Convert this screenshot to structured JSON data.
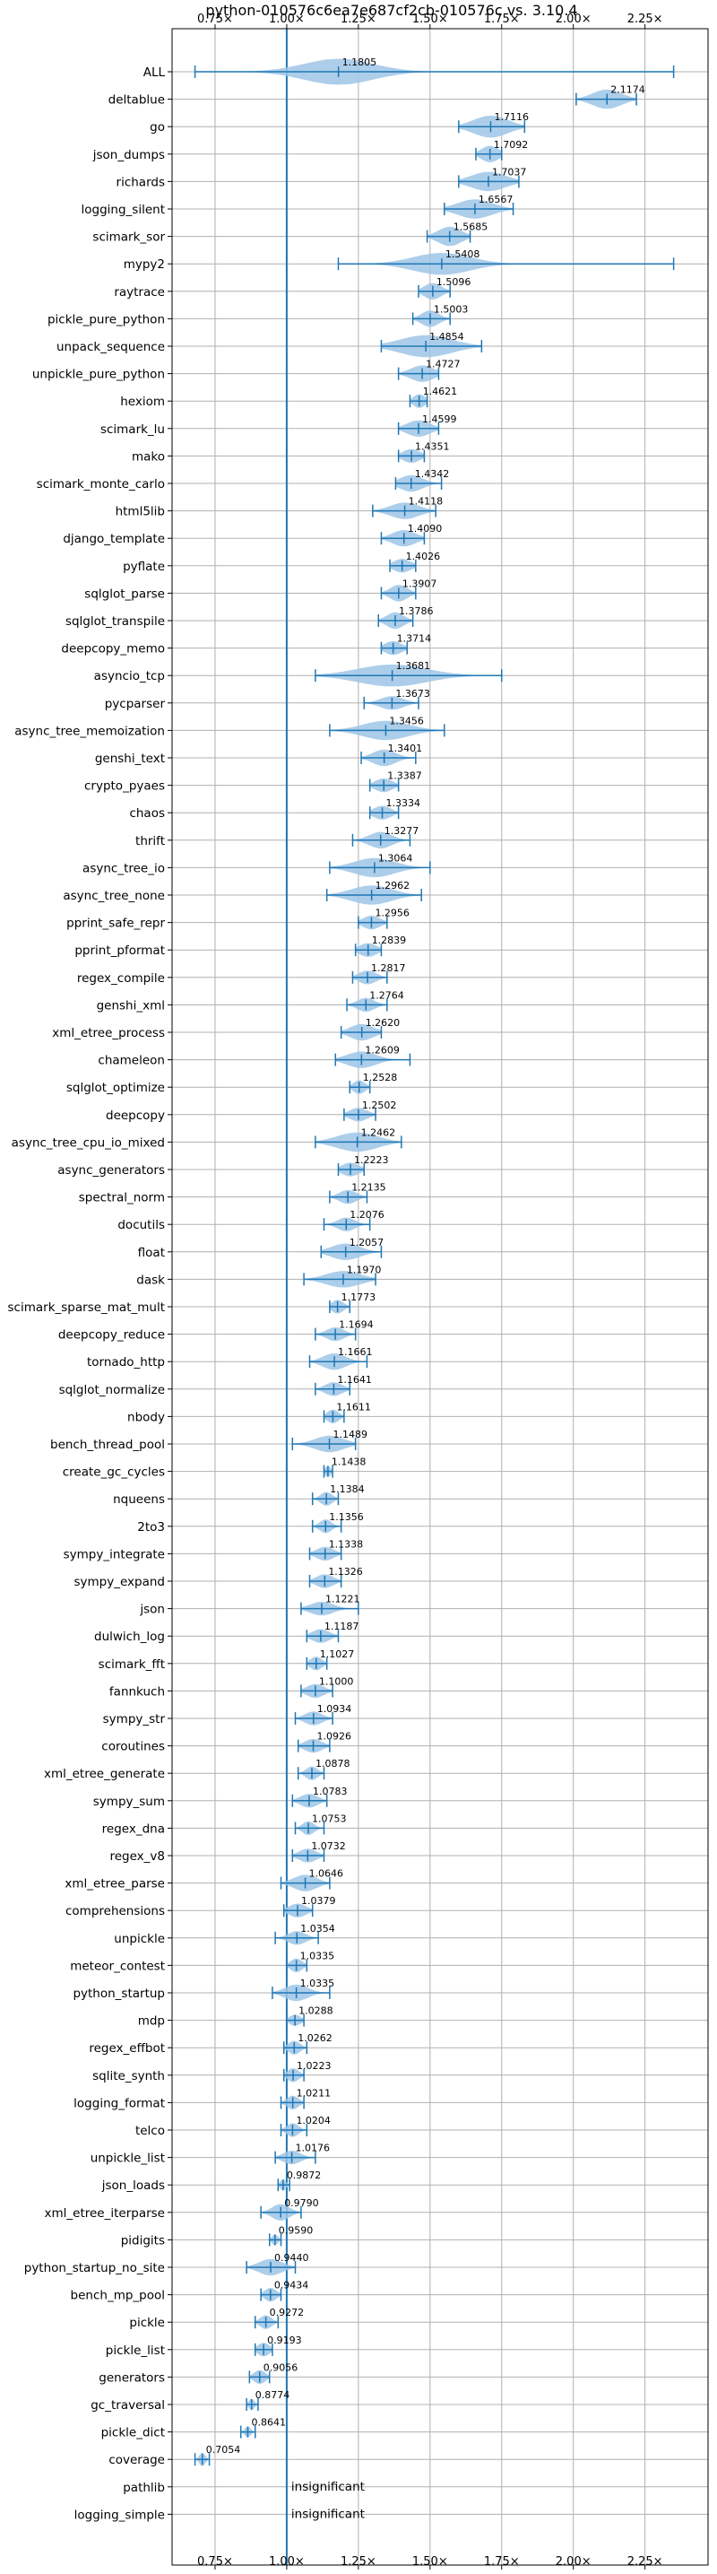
{
  "chart_data": {
    "type": "violin",
    "title": "python-010576c6ea7e687cf2cb-010576c vs. 3.10.4",
    "x_tick_labels": [
      "0.75×",
      "1.00×",
      "1.25×",
      "1.50×",
      "1.75×",
      "2.00×",
      "2.25×"
    ],
    "x_ticks": [
      0.75,
      1.0,
      1.25,
      1.5,
      1.75,
      2.0,
      2.25
    ],
    "xlim": [
      0.6,
      2.47
    ],
    "reference_line": 1.0,
    "grid": true,
    "colors": {
      "violin": "#9ec5e6",
      "line": "#1f77b4",
      "grid": "#b0b0b0"
    },
    "insignificant_text": "insignificant",
    "benchmarks": [
      {
        "name": "ALL",
        "value": 1.1805,
        "label": "1.1805",
        "min": 0.68,
        "max": 2.35,
        "w": 0.95,
        "spread": 0.12
      },
      {
        "name": "deltablue",
        "value": 2.1174,
        "label": "2.1174",
        "min": 2.01,
        "max": 2.22,
        "w": 0.7,
        "spread": 0.05
      },
      {
        "name": "go",
        "value": 1.7116,
        "label": "1.7116",
        "min": 1.6,
        "max": 1.83,
        "w": 0.8,
        "spread": 0.06
      },
      {
        "name": "json_dumps",
        "value": 1.7092,
        "label": "1.7092",
        "min": 1.66,
        "max": 1.75,
        "w": 0.6,
        "spread": 0.03
      },
      {
        "name": "richards",
        "value": 1.7037,
        "label": "1.7037",
        "min": 1.6,
        "max": 1.81,
        "w": 0.7,
        "spread": 0.06
      },
      {
        "name": "logging_silent",
        "value": 1.6567,
        "label": "1.6567",
        "min": 1.55,
        "max": 1.79,
        "w": 0.7,
        "spread": 0.06
      },
      {
        "name": "scimark_sor",
        "value": 1.5685,
        "label": "1.5685",
        "min": 1.49,
        "max": 1.64,
        "w": 0.7,
        "spread": 0.04
      },
      {
        "name": "mypy2",
        "value": 1.5408,
        "label": "1.5408",
        "min": 1.18,
        "max": 2.35,
        "w": 0.8,
        "spread": 0.1
      },
      {
        "name": "raytrace",
        "value": 1.5096,
        "label": "1.5096",
        "min": 1.46,
        "max": 1.57,
        "w": 0.6,
        "spread": 0.03
      },
      {
        "name": "pickle_pure_python",
        "value": 1.5003,
        "label": "1.5003",
        "min": 1.44,
        "max": 1.57,
        "w": 0.6,
        "spread": 0.03
      },
      {
        "name": "unpack_sequence",
        "value": 1.4854,
        "label": "1.4854",
        "min": 1.33,
        "max": 1.68,
        "w": 0.8,
        "spread": 0.09
      },
      {
        "name": "unpickle_pure_python",
        "value": 1.4727,
        "label": "1.4727",
        "min": 1.39,
        "max": 1.53,
        "w": 0.6,
        "spread": 0.04
      },
      {
        "name": "hexiom",
        "value": 1.4621,
        "label": "1.4621",
        "min": 1.43,
        "max": 1.49,
        "w": 0.5,
        "spread": 0.02
      },
      {
        "name": "scimark_lu",
        "value": 1.4599,
        "label": "1.4599",
        "min": 1.39,
        "max": 1.53,
        "w": 0.6,
        "spread": 0.04
      },
      {
        "name": "mako",
        "value": 1.4351,
        "label": "1.4351",
        "min": 1.39,
        "max": 1.48,
        "w": 0.5,
        "spread": 0.03
      },
      {
        "name": "scimark_monte_carlo",
        "value": 1.4342,
        "label": "1.4342",
        "min": 1.38,
        "max": 1.54,
        "w": 0.6,
        "spread": 0.04
      },
      {
        "name": "html5lib",
        "value": 1.4118,
        "label": "1.4118",
        "min": 1.3,
        "max": 1.52,
        "w": 0.6,
        "spread": 0.05
      },
      {
        "name": "django_template",
        "value": 1.409,
        "label": "1.4090",
        "min": 1.33,
        "max": 1.48,
        "w": 0.6,
        "spread": 0.04
      },
      {
        "name": "pyflate",
        "value": 1.4026,
        "label": "1.4026",
        "min": 1.36,
        "max": 1.45,
        "w": 0.5,
        "spread": 0.03
      },
      {
        "name": "sqlglot_parse",
        "value": 1.3907,
        "label": "1.3907",
        "min": 1.33,
        "max": 1.45,
        "w": 0.6,
        "spread": 0.03
      },
      {
        "name": "sqlglot_transpile",
        "value": 1.3786,
        "label": "1.3786",
        "min": 1.32,
        "max": 1.44,
        "w": 0.6,
        "spread": 0.03
      },
      {
        "name": "deepcopy_memo",
        "value": 1.3714,
        "label": "1.3714",
        "min": 1.33,
        "max": 1.42,
        "w": 0.5,
        "spread": 0.03
      },
      {
        "name": "asyncio_tcp",
        "value": 1.3681,
        "label": "1.3681",
        "min": 1.1,
        "max": 1.75,
        "w": 0.8,
        "spread": 0.12
      },
      {
        "name": "pycparser",
        "value": 1.3673,
        "label": "1.3673",
        "min": 1.27,
        "max": 1.46,
        "w": 0.5,
        "spread": 0.04
      },
      {
        "name": "async_tree_memoization",
        "value": 1.3456,
        "label": "1.3456",
        "min": 1.15,
        "max": 1.55,
        "w": 0.7,
        "spread": 0.08
      },
      {
        "name": "genshi_text",
        "value": 1.3401,
        "label": "1.3401",
        "min": 1.26,
        "max": 1.45,
        "w": 0.6,
        "spread": 0.04
      },
      {
        "name": "crypto_pyaes",
        "value": 1.3387,
        "label": "1.3387",
        "min": 1.29,
        "max": 1.39,
        "w": 0.5,
        "spread": 0.03
      },
      {
        "name": "chaos",
        "value": 1.3334,
        "label": "1.3334",
        "min": 1.29,
        "max": 1.39,
        "w": 0.5,
        "spread": 0.03
      },
      {
        "name": "thrift",
        "value": 1.3277,
        "label": "1.3277",
        "min": 1.23,
        "max": 1.43,
        "w": 0.6,
        "spread": 0.04
      },
      {
        "name": "async_tree_io",
        "value": 1.3064,
        "label": "1.3064",
        "min": 1.15,
        "max": 1.5,
        "w": 0.7,
        "spread": 0.07
      },
      {
        "name": "async_tree_none",
        "value": 1.2962,
        "label": "1.2962",
        "min": 1.14,
        "max": 1.47,
        "w": 0.7,
        "spread": 0.07
      },
      {
        "name": "pprint_safe_repr",
        "value": 1.2956,
        "label": "1.2956",
        "min": 1.25,
        "max": 1.35,
        "w": 0.5,
        "spread": 0.03
      },
      {
        "name": "pprint_pformat",
        "value": 1.2839,
        "label": "1.2839",
        "min": 1.24,
        "max": 1.33,
        "w": 0.5,
        "spread": 0.03
      },
      {
        "name": "regex_compile",
        "value": 1.2817,
        "label": "1.2817",
        "min": 1.23,
        "max": 1.35,
        "w": 0.5,
        "spread": 0.03
      },
      {
        "name": "genshi_xml",
        "value": 1.2764,
        "label": "1.2764",
        "min": 1.21,
        "max": 1.35,
        "w": 0.5,
        "spread": 0.03
      },
      {
        "name": "xml_etree_process",
        "value": 1.262,
        "label": "1.2620",
        "min": 1.19,
        "max": 1.33,
        "w": 0.6,
        "spread": 0.04
      },
      {
        "name": "chameleon",
        "value": 1.2609,
        "label": "1.2609",
        "min": 1.17,
        "max": 1.43,
        "w": 0.6,
        "spread": 0.05
      },
      {
        "name": "sqlglot_optimize",
        "value": 1.2528,
        "label": "1.2528",
        "min": 1.22,
        "max": 1.29,
        "w": 0.5,
        "spread": 0.02
      },
      {
        "name": "deepcopy",
        "value": 1.2502,
        "label": "1.2502",
        "min": 1.2,
        "max": 1.31,
        "w": 0.5,
        "spread": 0.03
      },
      {
        "name": "async_tree_cpu_io_mixed",
        "value": 1.2462,
        "label": "1.2462",
        "min": 1.1,
        "max": 1.4,
        "w": 0.7,
        "spread": 0.07
      },
      {
        "name": "async_generators",
        "value": 1.2223,
        "label": "1.2223",
        "min": 1.18,
        "max": 1.27,
        "w": 0.5,
        "spread": 0.03
      },
      {
        "name": "spectral_norm",
        "value": 1.2135,
        "label": "1.2135",
        "min": 1.15,
        "max": 1.28,
        "w": 0.5,
        "spread": 0.03
      },
      {
        "name": "docutils",
        "value": 1.2076,
        "label": "1.2076",
        "min": 1.13,
        "max": 1.29,
        "w": 0.5,
        "spread": 0.03
      },
      {
        "name": "float",
        "value": 1.2057,
        "label": "1.2057",
        "min": 1.12,
        "max": 1.33,
        "w": 0.6,
        "spread": 0.05
      },
      {
        "name": "dask",
        "value": 1.197,
        "label": "1.1970",
        "min": 1.06,
        "max": 1.31,
        "w": 0.6,
        "spread": 0.06
      },
      {
        "name": "scimark_sparse_mat_mult",
        "value": 1.1773,
        "label": "1.1773",
        "min": 1.15,
        "max": 1.22,
        "w": 0.5,
        "spread": 0.02
      },
      {
        "name": "deepcopy_reduce",
        "value": 1.1694,
        "label": "1.1694",
        "min": 1.1,
        "max": 1.24,
        "w": 0.5,
        "spread": 0.03
      },
      {
        "name": "tornado_http",
        "value": 1.1661,
        "label": "1.1661",
        "min": 1.08,
        "max": 1.28,
        "w": 0.6,
        "spread": 0.04
      },
      {
        "name": "sqlglot_normalize",
        "value": 1.1641,
        "label": "1.1641",
        "min": 1.1,
        "max": 1.22,
        "w": 0.5,
        "spread": 0.03
      },
      {
        "name": "nbody",
        "value": 1.1611,
        "label": "1.1611",
        "min": 1.13,
        "max": 1.2,
        "w": 0.5,
        "spread": 0.02
      },
      {
        "name": "bench_thread_pool",
        "value": 1.1489,
        "label": "1.1489",
        "min": 1.02,
        "max": 1.24,
        "w": 0.6,
        "spread": 0.05
      },
      {
        "name": "create_gc_cycles",
        "value": 1.1438,
        "label": "1.1438",
        "min": 1.13,
        "max": 1.16,
        "w": 0.4,
        "spread": 0.01
      },
      {
        "name": "nqueens",
        "value": 1.1384,
        "label": "1.1384",
        "min": 1.09,
        "max": 1.18,
        "w": 0.5,
        "spread": 0.02
      },
      {
        "name": "2to3",
        "value": 1.1356,
        "label": "1.1356",
        "min": 1.09,
        "max": 1.19,
        "w": 0.5,
        "spread": 0.02
      },
      {
        "name": "sympy_integrate",
        "value": 1.1338,
        "label": "1.1338",
        "min": 1.08,
        "max": 1.19,
        "w": 0.5,
        "spread": 0.03
      },
      {
        "name": "sympy_expand",
        "value": 1.1326,
        "label": "1.1326",
        "min": 1.08,
        "max": 1.19,
        "w": 0.5,
        "spread": 0.03
      },
      {
        "name": "json",
        "value": 1.1221,
        "label": "1.1221",
        "min": 1.05,
        "max": 1.25,
        "w": 0.5,
        "spread": 0.04
      },
      {
        "name": "dulwich_log",
        "value": 1.1187,
        "label": "1.1187",
        "min": 1.07,
        "max": 1.18,
        "w": 0.5,
        "spread": 0.03
      },
      {
        "name": "scimark_fft",
        "value": 1.1027,
        "label": "1.1027",
        "min": 1.07,
        "max": 1.14,
        "w": 0.5,
        "spread": 0.02
      },
      {
        "name": "fannkuch",
        "value": 1.1,
        "label": "1.1000",
        "min": 1.05,
        "max": 1.16,
        "w": 0.5,
        "spread": 0.03
      },
      {
        "name": "sympy_str",
        "value": 1.0934,
        "label": "1.0934",
        "min": 1.03,
        "max": 1.16,
        "w": 0.5,
        "spread": 0.03
      },
      {
        "name": "coroutines",
        "value": 1.0926,
        "label": "1.0926",
        "min": 1.04,
        "max": 1.15,
        "w": 0.5,
        "spread": 0.03
      },
      {
        "name": "xml_etree_generate",
        "value": 1.0878,
        "label": "1.0878",
        "min": 1.04,
        "max": 1.13,
        "w": 0.5,
        "spread": 0.02
      },
      {
        "name": "sympy_sum",
        "value": 1.0783,
        "label": "1.0783",
        "min": 1.02,
        "max": 1.14,
        "w": 0.5,
        "spread": 0.03
      },
      {
        "name": "regex_dna",
        "value": 1.0753,
        "label": "1.0753",
        "min": 1.03,
        "max": 1.13,
        "w": 0.5,
        "spread": 0.02
      },
      {
        "name": "regex_v8",
        "value": 1.0732,
        "label": "1.0732",
        "min": 1.02,
        "max": 1.13,
        "w": 0.5,
        "spread": 0.03
      },
      {
        "name": "xml_etree_parse",
        "value": 1.0646,
        "label": "1.0646",
        "min": 0.98,
        "max": 1.15,
        "w": 0.6,
        "spread": 0.04
      },
      {
        "name": "comprehensions",
        "value": 1.0379,
        "label": "1.0379",
        "min": 0.99,
        "max": 1.09,
        "w": 0.5,
        "spread": 0.03
      },
      {
        "name": "unpickle",
        "value": 1.0354,
        "label": "1.0354",
        "min": 0.96,
        "max": 1.11,
        "w": 0.5,
        "spread": 0.03
      },
      {
        "name": "meteor_contest",
        "value": 1.0335,
        "label": "1.0335",
        "min": 1.0,
        "max": 1.07,
        "w": 0.5,
        "spread": 0.02
      },
      {
        "name": "python_startup",
        "value": 1.0335,
        "label": "1.0335",
        "min": 0.95,
        "max": 1.15,
        "w": 0.6,
        "spread": 0.04
      },
      {
        "name": "mdp",
        "value": 1.0288,
        "label": "1.0288",
        "min": 1.0,
        "max": 1.06,
        "w": 0.4,
        "spread": 0.02
      },
      {
        "name": "regex_effbot",
        "value": 1.0262,
        "label": "1.0262",
        "min": 0.99,
        "max": 1.07,
        "w": 0.5,
        "spread": 0.02
      },
      {
        "name": "sqlite_synth",
        "value": 1.0223,
        "label": "1.0223",
        "min": 0.99,
        "max": 1.06,
        "w": 0.5,
        "spread": 0.02
      },
      {
        "name": "logging_format",
        "value": 1.0211,
        "label": "1.0211",
        "min": 0.98,
        "max": 1.06,
        "w": 0.5,
        "spread": 0.02
      },
      {
        "name": "telco",
        "value": 1.0204,
        "label": "1.0204",
        "min": 0.98,
        "max": 1.07,
        "w": 0.5,
        "spread": 0.02
      },
      {
        "name": "unpickle_list",
        "value": 1.0176,
        "label": "1.0176",
        "min": 0.96,
        "max": 1.1,
        "w": 0.5,
        "spread": 0.03
      },
      {
        "name": "json_loads",
        "value": 0.9872,
        "label": "0.9872",
        "min": 0.97,
        "max": 1.01,
        "w": 0.4,
        "spread": 0.01
      },
      {
        "name": "xml_etree_iterparse",
        "value": 0.979,
        "label": "0.9790",
        "min": 0.91,
        "max": 1.05,
        "w": 0.6,
        "spread": 0.03
      },
      {
        "name": "pidigits",
        "value": 0.959,
        "label": "0.9590",
        "min": 0.94,
        "max": 0.98,
        "w": 0.4,
        "spread": 0.01
      },
      {
        "name": "python_startup_no_site",
        "value": 0.944,
        "label": "0.9440",
        "min": 0.86,
        "max": 1.03,
        "w": 0.6,
        "spread": 0.04
      },
      {
        "name": "bench_mp_pool",
        "value": 0.9434,
        "label": "0.9434",
        "min": 0.91,
        "max": 0.98,
        "w": 0.5,
        "spread": 0.02
      },
      {
        "name": "pickle",
        "value": 0.9272,
        "label": "0.9272",
        "min": 0.89,
        "max": 0.97,
        "w": 0.5,
        "spread": 0.02
      },
      {
        "name": "pickle_list",
        "value": 0.9193,
        "label": "0.9193",
        "min": 0.89,
        "max": 0.95,
        "w": 0.5,
        "spread": 0.02
      },
      {
        "name": "generators",
        "value": 0.9056,
        "label": "0.9056",
        "min": 0.87,
        "max": 0.94,
        "w": 0.5,
        "spread": 0.02
      },
      {
        "name": "gc_traversal",
        "value": 0.8774,
        "label": "0.8774",
        "min": 0.86,
        "max": 0.9,
        "w": 0.4,
        "spread": 0.01
      },
      {
        "name": "pickle_dict",
        "value": 0.8641,
        "label": "0.8641",
        "min": 0.84,
        "max": 0.89,
        "w": 0.4,
        "spread": 0.01
      },
      {
        "name": "coverage",
        "value": 0.7054,
        "label": "0.7054",
        "min": 0.68,
        "max": 0.73,
        "w": 0.5,
        "spread": 0.01
      },
      {
        "name": "pathlib",
        "value": null,
        "label": "insignificant"
      },
      {
        "name": "logging_simple",
        "value": null,
        "label": "insignificant"
      }
    ]
  }
}
